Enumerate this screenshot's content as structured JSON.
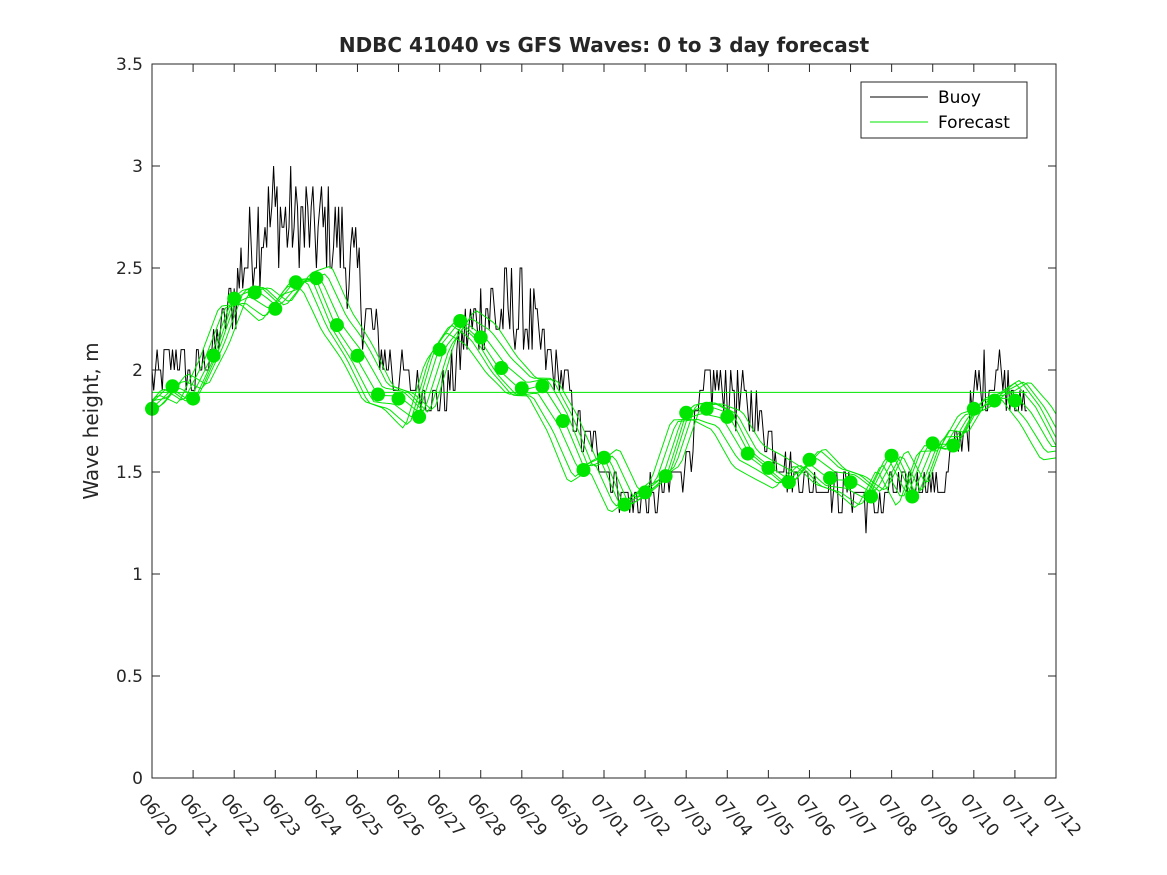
{
  "chart_data": {
    "type": "line",
    "title": "NDBC 41040 vs GFS Waves: 0 to 3 day forecast",
    "xlabel": "",
    "ylabel": "Wave height, m",
    "x_tick_labels": [
      "06/20",
      "06/21",
      "06/22",
      "06/23",
      "06/24",
      "06/25",
      "06/26",
      "06/27",
      "06/28",
      "06/29",
      "06/30",
      "07/01",
      "07/02",
      "07/03",
      "07/04",
      "07/05",
      "07/06",
      "07/07",
      "07/08",
      "07/09",
      "07/10",
      "07/11",
      "07/12"
    ],
    "x_range_days": [
      0,
      22
    ],
    "y_ticks": [
      "0",
      "0.5",
      "1",
      "1.5",
      "2",
      "2.5",
      "3",
      "3.5"
    ],
    "ylim": [
      0,
      3.5
    ],
    "grid": false,
    "legend": {
      "placement": "top-right",
      "entries": [
        {
          "label": "Buoy",
          "color": "#000000"
        },
        {
          "label": "Forecast",
          "color": "#00e600"
        }
      ]
    },
    "colors": {
      "buoy": "#000000",
      "forecast": "#00e600",
      "axes": "#262626"
    },
    "buoy_trend": {
      "x": [
        0,
        0.5,
        1,
        1.3,
        1.6,
        2,
        2.3,
        2.6,
        3,
        3.5,
        4,
        4.5,
        5,
        5.3,
        5.6,
        6,
        6.3,
        6.6,
        7,
        7.3,
        7.6,
        8,
        8.3,
        8.6,
        9,
        9.3,
        9.6,
        10,
        10.4,
        10.8,
        11,
        11.3,
        11.6,
        12,
        12.3,
        12.6,
        13,
        13.3,
        13.6,
        14,
        14.3,
        14.6,
        15,
        15.3,
        15.6,
        16,
        16.4,
        16.8,
        17,
        17.4,
        17.8,
        18,
        18.3,
        18.6,
        19,
        19.3,
        19.6,
        20,
        20.3,
        20.6,
        21,
        21.3
      ],
      "y": [
        1.95,
        2.05,
        1.95,
        2.05,
        2.15,
        2.35,
        2.55,
        2.7,
        2.75,
        2.7,
        2.7,
        2.65,
        2.45,
        2.25,
        2.05,
        1.95,
        1.95,
        1.9,
        1.85,
        1.95,
        2.15,
        2.3,
        2.3,
        2.25,
        2.3,
        2.2,
        2.05,
        1.95,
        1.7,
        1.6,
        1.55,
        1.45,
        1.35,
        1.35,
        1.4,
        1.45,
        1.55,
        1.75,
        1.95,
        1.9,
        1.85,
        1.8,
        1.7,
        1.55,
        1.5,
        1.45,
        1.45,
        1.4,
        1.4,
        1.35,
        1.35,
        1.4,
        1.45,
        1.45,
        1.45,
        1.45,
        1.6,
        1.85,
        1.95,
        2.0,
        1.9,
        1.75
      ],
      "noise": [
        0.1,
        0.12,
        0.1,
        0.12,
        0.15,
        0.2,
        0.25,
        0.3,
        0.3,
        0.25,
        0.25,
        0.25,
        0.25,
        0.2,
        0.15,
        0.12,
        0.1,
        0.12,
        0.12,
        0.15,
        0.2,
        0.2,
        0.25,
        0.25,
        0.25,
        0.2,
        0.15,
        0.12,
        0.12,
        0.1,
        0.1,
        0.1,
        0.08,
        0.1,
        0.1,
        0.1,
        0.12,
        0.15,
        0.15,
        0.15,
        0.15,
        0.12,
        0.12,
        0.1,
        0.1,
        0.1,
        0.1,
        0.1,
        0.1,
        0.12,
        0.15,
        0.12,
        0.1,
        0.1,
        0.1,
        0.1,
        0.12,
        0.15,
        0.15,
        0.12,
        0.1,
        0.08
      ]
    },
    "forecast_mean": {
      "x": [
        0,
        0.5,
        1,
        1.5,
        2,
        2.5,
        3,
        3.5,
        4,
        4.5,
        5,
        5.5,
        6,
        6.5,
        7,
        7.5,
        8,
        8.5,
        9,
        9.5,
        10,
        10.5,
        11,
        11.5,
        12,
        12.5,
        13,
        13.5,
        14,
        14.5,
        15,
        15.5,
        16,
        16.5,
        17,
        17.5,
        18,
        18.5,
        19,
        19.5,
        20,
        20.5,
        21,
        21.5,
        22
      ],
      "y": [
        1.81,
        1.92,
        1.86,
        2.07,
        2.35,
        2.38,
        2.3,
        2.43,
        2.45,
        2.22,
        2.07,
        1.88,
        1.86,
        1.77,
        2.1,
        2.24,
        2.16,
        2.01,
        1.91,
        1.92,
        1.75,
        1.51,
        1.57,
        1.34,
        1.4,
        1.48,
        1.79,
        1.81,
        1.77,
        1.59,
        1.52,
        1.45,
        1.56,
        1.47,
        1.45,
        1.38,
        1.58,
        1.38,
        1.64,
        1.63,
        1.81,
        1.85,
        1.92,
        1.8,
        1.62
      ]
    },
    "forecast_horizontal_line": 1.89,
    "analysis_points": {
      "x": [
        0,
        0.5,
        1,
        1.5,
        2,
        2.5,
        3,
        3.5,
        4,
        4.5,
        5,
        5.5,
        6,
        6.5,
        7,
        7.5,
        8,
        8.5,
        9,
        9.5,
        10,
        10.5,
        11,
        11.5,
        12,
        12.5,
        13,
        13.5,
        14,
        14.5,
        15,
        15.5,
        16,
        16.5,
        17,
        17.5,
        18,
        18.5,
        19,
        19.5,
        20,
        20.5,
        21
      ],
      "y": [
        1.81,
        1.92,
        1.86,
        2.07,
        2.35,
        2.38,
        2.3,
        2.43,
        2.45,
        2.22,
        2.07,
        1.88,
        1.86,
        1.77,
        2.1,
        2.24,
        2.16,
        2.01,
        1.91,
        1.92,
        1.75,
        1.51,
        1.57,
        1.34,
        1.4,
        1.48,
        1.79,
        1.81,
        1.77,
        1.59,
        1.52,
        1.45,
        1.56,
        1.47,
        1.45,
        1.38,
        1.58,
        1.38,
        1.64,
        1.63,
        1.81,
        1.85,
        1.85
      ]
    }
  }
}
